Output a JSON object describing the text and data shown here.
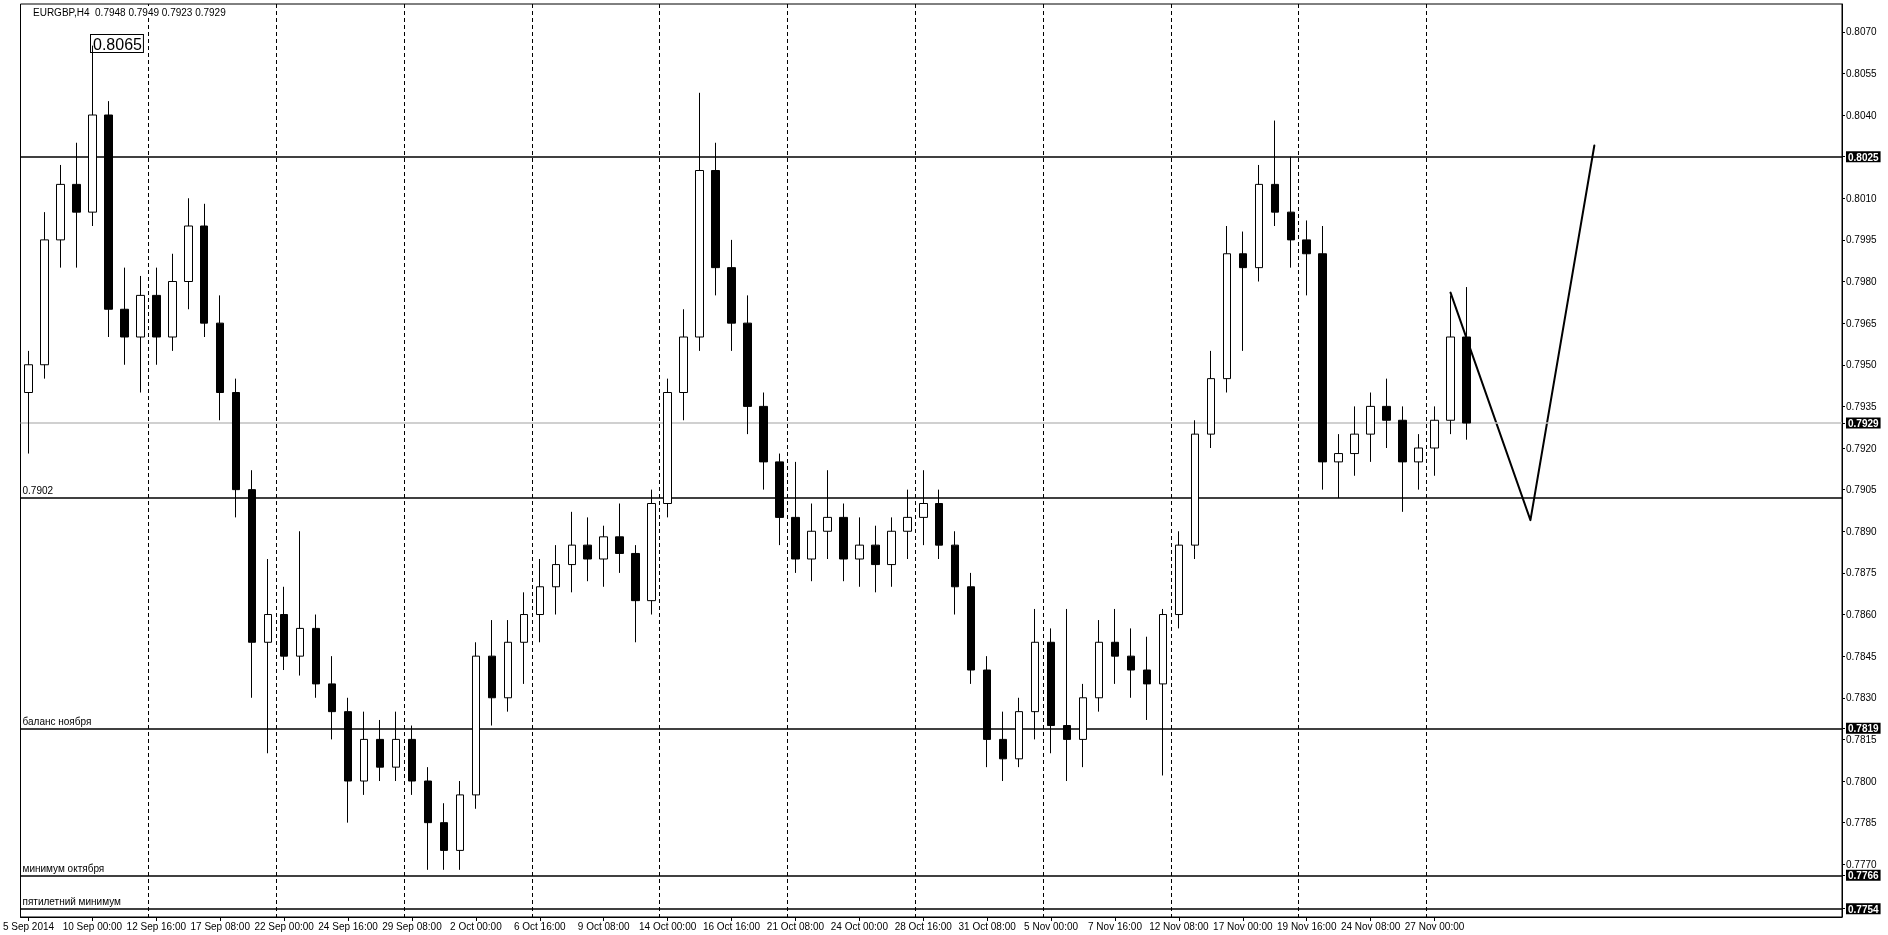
{
  "chart_data": {
    "type": "candlestick",
    "title": "EURGBP,H4  0.7948 0.7949 0.7923 0.7929",
    "color": "#000000",
    "grid": "x",
    "marker": "none",
    "categories": [
      "5 Sep 2014",
      null,
      null,
      null,
      "10 Sep 00:00",
      null,
      null,
      null,
      "12 Sep 16:00",
      null,
      null,
      null,
      "17 Sep 08:00",
      null,
      null,
      null,
      "22 Sep 00:00",
      null,
      null,
      null,
      "24 Sep 16:00",
      null,
      null,
      null,
      "29 Sep 08:00",
      null,
      null,
      null,
      "2 Oct 00:00",
      null,
      null,
      null,
      "6 Oct 16:00",
      null,
      null,
      null,
      "9 Oct 08:00",
      null,
      null,
      null,
      "14 Oct 00:00",
      null,
      null,
      null,
      "16 Oct 16:00",
      null,
      null,
      null,
      "21 Oct 08:00",
      null,
      null,
      null,
      "24 Oct 00:00",
      null,
      null,
      null,
      "28 Oct 16:00",
      null,
      null,
      null,
      "31 Oct 08:00",
      null,
      null,
      null,
      "5 Nov 00:00",
      null,
      null,
      null,
      "7 Nov 16:00",
      null,
      null,
      null,
      "12 Nov 08:00",
      null,
      null,
      null,
      "17 Nov 00:00",
      null,
      null,
      null,
      "19 Nov 16:00",
      null,
      null,
      null,
      "24 Nov 08:00",
      null,
      null,
      null,
      "27 Nov 00:00",
      null,
      null,
      null,
      null,
      null,
      null,
      null,
      null,
      null,
      null,
      null,
      null,
      null,
      null,
      null,
      null,
      null,
      null,
      null,
      null,
      null,
      null,
      null,
      null,
      null
    ],
    "ohlc": [
      [
        0.794,
        0.7955,
        0.7918,
        0.795
      ],
      [
        0.795,
        0.8005,
        0.7945,
        0.7995
      ],
      [
        0.7995,
        0.8022,
        0.7985,
        0.8015
      ],
      [
        0.8015,
        0.803,
        0.7985,
        0.8005
      ],
      [
        0.8005,
        0.8065,
        0.8,
        0.804
      ],
      [
        0.804,
        0.8045,
        0.796,
        0.797
      ],
      [
        0.797,
        0.7985,
        0.795,
        0.796
      ],
      [
        0.796,
        0.7982,
        0.794,
        0.7975
      ],
      [
        0.7975,
        0.7985,
        0.795,
        0.796
      ],
      [
        0.796,
        0.799,
        0.7955,
        0.798
      ],
      [
        0.798,
        0.801,
        0.797,
        0.8
      ],
      [
        0.8,
        0.8008,
        0.796,
        0.7965
      ],
      [
        0.7965,
        0.7975,
        0.793,
        0.794
      ],
      [
        0.794,
        0.7945,
        0.7895,
        0.7905
      ],
      [
        0.7905,
        0.7912,
        0.783,
        0.785
      ],
      [
        0.785,
        0.788,
        0.781,
        0.786
      ],
      [
        0.786,
        0.787,
        0.784,
        0.7845
      ],
      [
        0.7845,
        0.789,
        0.7838,
        0.7855
      ],
      [
        0.7855,
        0.786,
        0.783,
        0.7835
      ],
      [
        0.7835,
        0.7845,
        0.7815,
        0.7825
      ],
      [
        0.7825,
        0.783,
        0.7785,
        0.78
      ],
      [
        0.78,
        0.7825,
        0.7795,
        0.7815
      ],
      [
        0.7815,
        0.7822,
        0.78,
        0.7805
      ],
      [
        0.7805,
        0.7825,
        0.78,
        0.7815
      ],
      [
        0.7815,
        0.782,
        0.7795,
        0.78
      ],
      [
        0.78,
        0.7805,
        0.7768,
        0.7785
      ],
      [
        0.7785,
        0.7792,
        0.7768,
        0.7775
      ],
      [
        0.7775,
        0.78,
        0.7768,
        0.7795
      ],
      [
        0.7795,
        0.785,
        0.779,
        0.7845
      ],
      [
        0.7845,
        0.7858,
        0.782,
        0.783
      ],
      [
        0.783,
        0.7858,
        0.7825,
        0.785
      ],
      [
        0.785,
        0.7868,
        0.7835,
        0.786
      ],
      [
        0.786,
        0.788,
        0.785,
        0.787
      ],
      [
        0.787,
        0.7885,
        0.786,
        0.7878
      ],
      [
        0.7878,
        0.7897,
        0.7868,
        0.7885
      ],
      [
        0.7885,
        0.7895,
        0.7872,
        0.788
      ],
      [
        0.788,
        0.7892,
        0.787,
        0.7888
      ],
      [
        0.7888,
        0.79,
        0.7875,
        0.7882
      ],
      [
        0.7882,
        0.7885,
        0.785,
        0.7865
      ],
      [
        0.7865,
        0.7905,
        0.786,
        0.79
      ],
      [
        0.79,
        0.7945,
        0.7895,
        0.794
      ],
      [
        0.794,
        0.797,
        0.793,
        0.796
      ],
      [
        0.796,
        0.8048,
        0.7955,
        0.802
      ],
      [
        0.802,
        0.803,
        0.7975,
        0.7985
      ],
      [
        0.7985,
        0.7995,
        0.7955,
        0.7965
      ],
      [
        0.7965,
        0.7975,
        0.7925,
        0.7935
      ],
      [
        0.7935,
        0.794,
        0.7905,
        0.7915
      ],
      [
        0.7915,
        0.7918,
        0.7885,
        0.7895
      ],
      [
        0.7895,
        0.7915,
        0.7875,
        0.788
      ],
      [
        0.788,
        0.79,
        0.7872,
        0.789
      ],
      [
        0.789,
        0.7912,
        0.788,
        0.7895
      ],
      [
        0.7895,
        0.79,
        0.7872,
        0.788
      ],
      [
        0.788,
        0.7895,
        0.787,
        0.7885
      ],
      [
        0.7885,
        0.7892,
        0.7868,
        0.7878
      ],
      [
        0.7878,
        0.7895,
        0.787,
        0.789
      ],
      [
        0.789,
        0.7905,
        0.788,
        0.7895
      ],
      [
        0.7895,
        0.7912,
        0.7885,
        0.79
      ],
      [
        0.79,
        0.7905,
        0.788,
        0.7885
      ],
      [
        0.7885,
        0.789,
        0.786,
        0.787
      ],
      [
        0.787,
        0.7875,
        0.7835,
        0.784
      ],
      [
        0.784,
        0.7845,
        0.7805,
        0.7815
      ],
      [
        0.7815,
        0.7825,
        0.78,
        0.7808
      ],
      [
        0.7808,
        0.783,
        0.7805,
        0.7825
      ],
      [
        0.7825,
        0.7862,
        0.7815,
        0.785
      ],
      [
        0.785,
        0.7855,
        0.781,
        0.782
      ],
      [
        0.782,
        0.7862,
        0.78,
        0.7815
      ],
      [
        0.7815,
        0.7835,
        0.7805,
        0.783
      ],
      [
        0.783,
        0.7858,
        0.7825,
        0.785
      ],
      [
        0.785,
        0.7862,
        0.7835,
        0.7845
      ],
      [
        0.7845,
        0.7855,
        0.783,
        0.784
      ],
      [
        0.784,
        0.7852,
        0.7822,
        0.7835
      ],
      [
        0.7835,
        0.7862,
        0.7802,
        0.786
      ],
      [
        0.786,
        0.789,
        0.7855,
        0.7885
      ],
      [
        0.7885,
        0.793,
        0.788,
        0.7925
      ],
      [
        0.7925,
        0.7955,
        0.792,
        0.7945
      ],
      [
        0.7945,
        0.8,
        0.794,
        0.799
      ],
      [
        0.799,
        0.7998,
        0.7955,
        0.7985
      ],
      [
        0.7985,
        0.8022,
        0.798,
        0.8015
      ],
      [
        0.8015,
        0.8038,
        0.8,
        0.8005
      ],
      [
        0.8005,
        0.8025,
        0.7985,
        0.7995
      ],
      [
        0.7995,
        0.8002,
        0.7975,
        0.799
      ],
      [
        0.799,
        0.8,
        0.7905,
        0.7915
      ],
      [
        0.7915,
        0.7925,
        0.7902,
        0.7918
      ],
      [
        0.7918,
        0.7935,
        0.791,
        0.7925
      ],
      [
        0.7925,
        0.794,
        0.7915,
        0.7935
      ],
      [
        0.7935,
        0.7945,
        0.792,
        0.793
      ],
      [
        0.793,
        0.7935,
        0.7897,
        0.7915
      ],
      [
        0.7915,
        0.7925,
        0.7905,
        0.792
      ],
      [
        0.792,
        0.7935,
        0.791,
        0.793
      ],
      [
        0.793,
        0.7975,
        0.7925,
        0.796
      ],
      [
        0.796,
        0.7978,
        0.7923,
        0.7929
      ],
      null,
      null,
      null,
      null,
      null,
      null,
      null,
      null,
      null,
      null,
      null,
      null,
      null,
      null,
      null,
      null,
      null,
      null,
      null,
      null,
      null,
      null,
      null
    ],
    "series": [
      {
        "type": "line",
        "color": "#000000",
        "values": [
          null,
          null,
          null,
          null,
          null,
          null,
          null,
          null,
          null,
          null,
          null,
          null,
          null,
          null,
          null,
          null,
          null,
          null,
          null,
          null,
          null,
          null,
          null,
          null,
          null,
          null,
          null,
          null,
          null,
          null,
          null,
          null,
          null,
          null,
          null,
          null,
          null,
          null,
          null,
          null,
          null,
          null,
          null,
          null,
          null,
          null,
          null,
          null,
          null,
          null,
          null,
          null,
          null,
          null,
          null,
          null,
          null,
          null,
          null,
          null,
          null,
          null,
          null,
          null,
          null,
          null,
          null,
          null,
          null,
          null,
          null,
          null,
          null,
          null,
          null,
          null,
          null,
          null,
          null,
          null,
          null,
          null,
          null,
          null,
          null,
          null,
          null,
          null,
          null,
          0.7976,
          null,
          null,
          null,
          null,
          0.7894,
          null,
          null,
          null,
          0.8029,
          null,
          null,
          null,
          null,
          null,
          null,
          null,
          null,
          null,
          null,
          null,
          null,
          null,
          null,
          null
        ]
      }
    ],
    "ylim": [
      0.7751,
      0.808
    ],
    "yticks": [
      {
        "value": 0.7754,
        "label": "0.7754"
      },
      {
        "value": 0.7766,
        "label": "0.7766"
      },
      {
        "value": 0.777,
        "label": "0.7770"
      },
      {
        "value": 0.7785,
        "label": "0.7785"
      },
      {
        "value": 0.78,
        "label": "0.7800"
      },
      {
        "value": 0.7815,
        "label": "0.7815"
      },
      {
        "value": 0.7819,
        "label": "0.7819"
      },
      {
        "value": 0.783,
        "label": "0.7830"
      },
      {
        "value": 0.7845,
        "label": "0.7845"
      },
      {
        "value": 0.786,
        "label": "0.7860"
      },
      {
        "value": 0.7875,
        "label": "0.7875"
      },
      {
        "value": 0.789,
        "label": "0.7890"
      },
      {
        "value": 0.7905,
        "label": "0.7905"
      },
      {
        "value": 0.792,
        "label": "0.7920"
      },
      {
        "value": 0.7929,
        "label": "0.7929"
      },
      {
        "value": 0.7935,
        "label": "0.7935"
      },
      {
        "value": 0.795,
        "label": "0.7950"
      },
      {
        "value": 0.7965,
        "label": "0.7965"
      },
      {
        "value": 0.798,
        "label": "0.7980"
      },
      {
        "value": 0.7995,
        "label": "0.7995"
      },
      {
        "value": 0.801,
        "label": "0.8010"
      },
      {
        "value": 0.8025,
        "label": "0.8025"
      },
      {
        "value": 0.804,
        "label": "0.8040"
      },
      {
        "value": 0.8055,
        "label": "0.8055"
      },
      {
        "value": 0.807,
        "label": "0.8070"
      }
    ],
    "ref_lines": [
      {
        "axis": "y",
        "value": 0.8025,
        "color": "#000000"
      },
      {
        "axis": "y",
        "value": 0.7929,
        "color": "#c0c0c0"
      },
      {
        "axis": "y",
        "value": 0.7902,
        "label": "0.7902",
        "color": "#000000"
      },
      {
        "axis": "y",
        "value": 0.7819,
        "label": "баланс ноября",
        "color": "#000000"
      },
      {
        "axis": "y",
        "value": 0.7766,
        "label": "минимум октября",
        "color": "#000000"
      },
      {
        "axis": "y",
        "value": 0.7754,
        "label": "пятилетний минимум",
        "color": "#000000"
      }
    ],
    "annotations": [
      "0.8065"
    ]
  }
}
